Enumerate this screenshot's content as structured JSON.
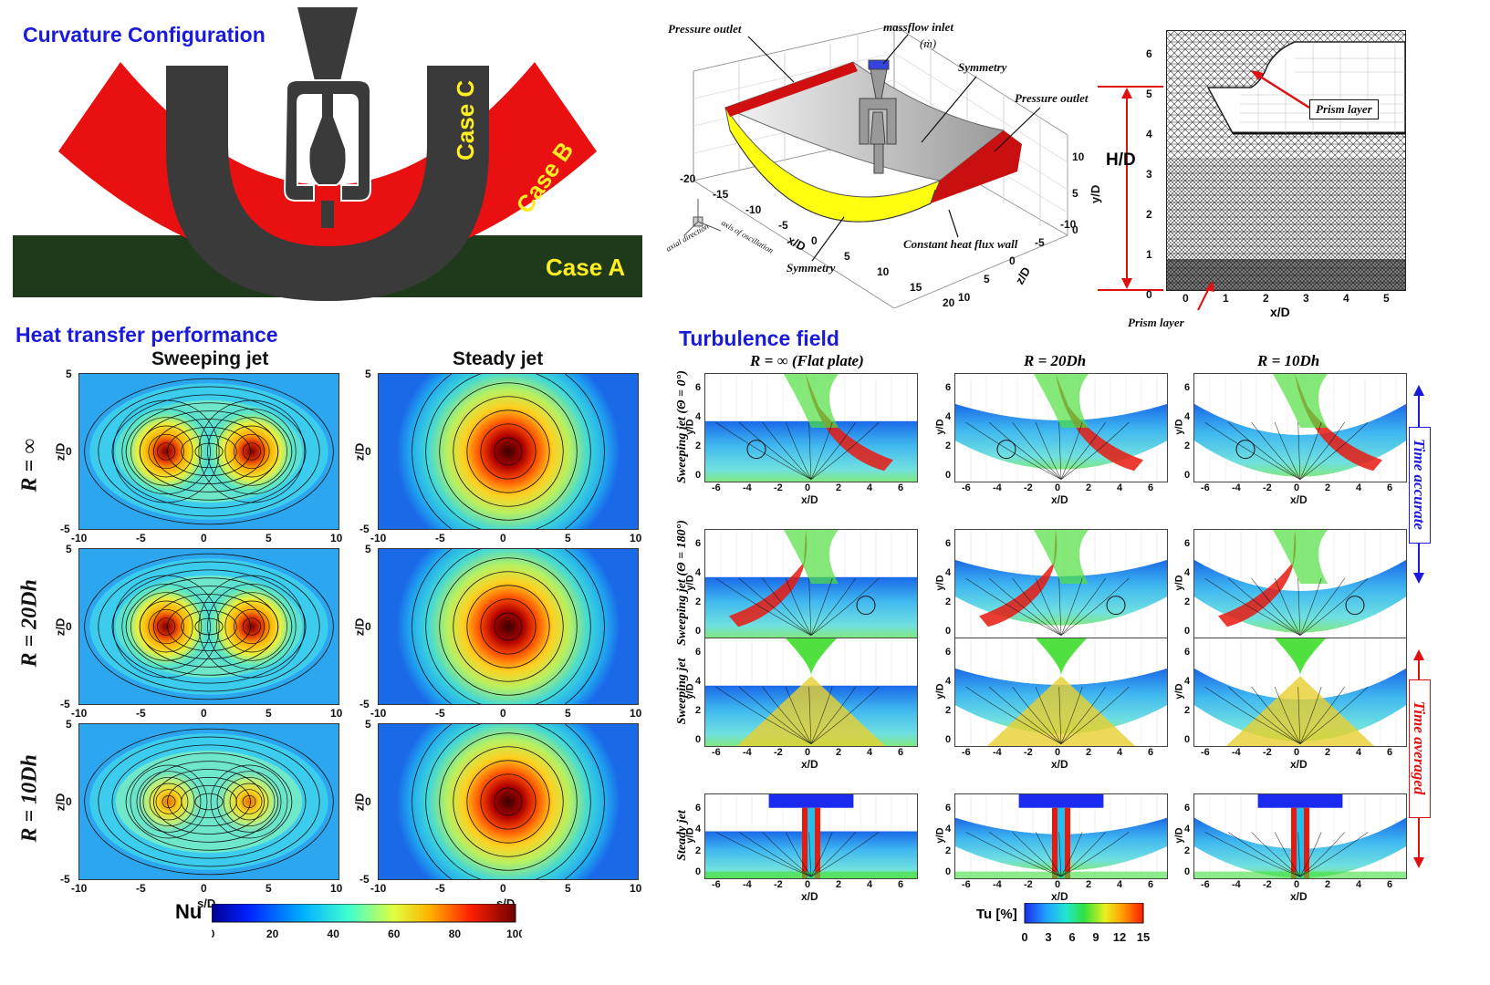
{
  "curvature": {
    "title": "Curvature Configuration",
    "case_a": "Case A",
    "case_b": "Case B",
    "case_c": "Case C"
  },
  "domain3d": {
    "pressure_outlet_left": "Pressure outlet",
    "massflow_inlet": "massflow inlet",
    "massflow_symbol": "(ṁ)",
    "symmetry_top": "Symmetry",
    "pressure_outlet_right": "Pressure outlet",
    "symmetry_bottom": "Symmetry",
    "constant_heat_flux": "Constant heat flux wall",
    "axial_direction": "axial direction",
    "axis_oscillation": "axis of oscillation",
    "x_axis": "x/D",
    "z_axis": "z/D",
    "y_axis": "y/D",
    "x_ticks": [
      "-20",
      "-15",
      "-10",
      "-5",
      "0",
      "5",
      "10",
      "15",
      "20"
    ],
    "z_ticks": [
      "10",
      "5",
      "0",
      "-5",
      "-10"
    ],
    "y_ticks": [
      "10",
      "5",
      "0"
    ]
  },
  "mesh": {
    "hd_label": "H/D",
    "prism_layer_top": "Prism layer",
    "prism_layer_bottom": "Prism layer",
    "x_axis": "x/D",
    "x_ticks": [
      "0",
      "1",
      "2",
      "3",
      "4",
      "5"
    ],
    "y_ticks": [
      "0",
      "1",
      "2",
      "3",
      "4",
      "5",
      "6"
    ]
  },
  "heat_transfer": {
    "title": "Heat transfer performance",
    "col_sweeping": "Sweeping jet",
    "col_steady": "Steady jet",
    "rows": [
      "R = ∞",
      "R = 20Dh",
      "R = 10Dh"
    ],
    "xlabel": "s/D",
    "ylabel": "z/D",
    "x_ticks_wide": [
      "-10",
      "-5",
      "0",
      "5",
      "10"
    ],
    "y_ticks": [
      "5",
      "0",
      "-5"
    ],
    "colorbar_label": "Nu",
    "colorbar_ticks": [
      "0",
      "20",
      "40",
      "60",
      "80",
      "100"
    ]
  },
  "turbulence": {
    "title": "Turbulence field",
    "col_flat": "R = ∞ (Flat plate)",
    "col_20": "R = 20Dh",
    "col_10": "R = 10Dh",
    "row_1": "Sweeping jet (Θ = 0°)",
    "row_2": "Sweeping jet (Θ = 180°)",
    "row_3": "Sweeping jet",
    "row_4": "Steady jet",
    "time_accurate": "Time accurate",
    "time_averaged": "Time averaged",
    "xlabel": "x/D",
    "ylabel": "y/D",
    "x_ticks": [
      "-6",
      "-4",
      "-2",
      "0",
      "2",
      "4",
      "6"
    ],
    "y_ticks": [
      "6",
      "4",
      "2",
      "0"
    ],
    "colorbar_label": "Tu [%]",
    "colorbar_ticks": [
      "0",
      "3",
      "6",
      "9",
      "12",
      "15"
    ]
  },
  "colors": {
    "title_blue": "#1a1adb",
    "case_green": "#1f3a1a",
    "case_red": "#e81010",
    "nozzle_gray": "#3a3a3a",
    "label_yellow": "#ffee22"
  }
}
